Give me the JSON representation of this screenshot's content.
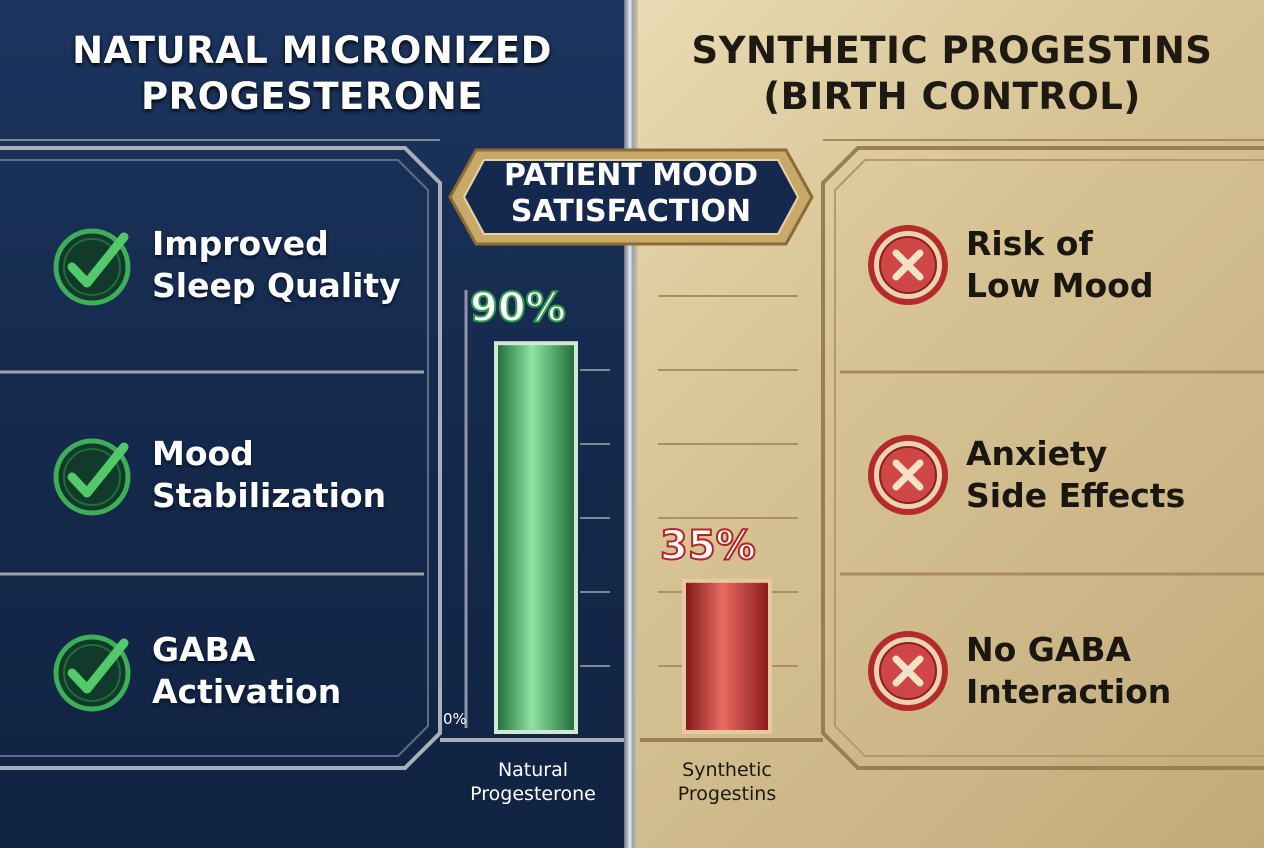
{
  "title_left": [
    "NATURAL MICRONIZED",
    "PROGESTERONE"
  ],
  "title_right": [
    "SYNTHETIC PROGESTINS",
    "(BIRTH CONTROL)"
  ],
  "badge": [
    "PATIENT MOOD",
    "SATISFACTION"
  ],
  "benefits": [
    {
      "lines": [
        "Improved",
        "Sleep Quality"
      ],
      "icon": "check-circle-icon"
    },
    {
      "lines": [
        "Mood",
        "Stabilization"
      ],
      "icon": "check-circle-icon"
    },
    {
      "lines": [
        "GABA",
        "Activation"
      ],
      "icon": "check-circle-icon"
    }
  ],
  "drawbacks": [
    {
      "lines": [
        "Risk of",
        "Low Mood"
      ],
      "icon": "x-circle-icon"
    },
    {
      "lines": [
        "Anxiety",
        "Side Effects"
      ],
      "icon": "x-circle-icon"
    },
    {
      "lines": [
        "No GABA",
        "Interaction"
      ],
      "icon": "x-circle-icon"
    }
  ],
  "colors": {
    "natural": "#2f9e4c",
    "synthetic": "#c62b2b",
    "navy": "#152a4d",
    "gold": "#d6c293"
  },
  "chart_data": {
    "type": "bar",
    "title": "PATIENT MOOD SATISFACTION",
    "categories": [
      [
        "Natural",
        "Progesterone"
      ],
      [
        "Synthetic",
        "Progestins"
      ]
    ],
    "values": [
      90,
      35
    ],
    "value_labels": [
      "90%",
      "35%"
    ],
    "axis_min_label": "0%",
    "ylim": [
      0,
      100
    ],
    "grid": true
  }
}
